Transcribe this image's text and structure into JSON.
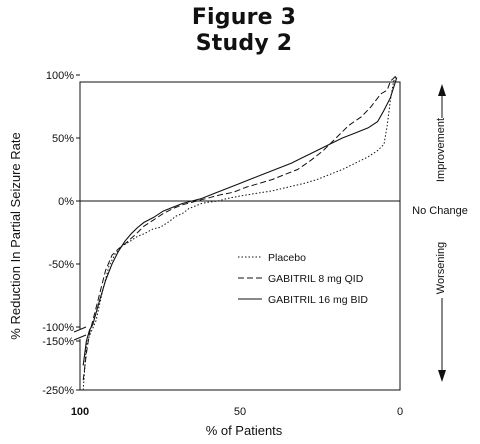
{
  "figure": {
    "title": "Figure 3",
    "subtitle": "Study 2"
  },
  "annotations": {
    "improvement": "Improvement",
    "worsening": "Worsening",
    "no_change": "No Change"
  },
  "chart_data": {
    "type": "line",
    "xlabel": "% of Patients",
    "ylabel": "% Reduction In Partial Seizure Rate",
    "xlim": [
      100,
      0
    ],
    "x_reversed": true,
    "x_ticks": [
      {
        "value": 100,
        "label": "100"
      },
      {
        "value": 50,
        "label": "50"
      },
      {
        "value": 0,
        "label": "0"
      }
    ],
    "y_ticks": [
      {
        "value": 100,
        "label": "100%"
      },
      {
        "value": 50,
        "label": "50%"
      },
      {
        "value": 0,
        "label": "0%"
      },
      {
        "value": -50,
        "label": "-50%"
      },
      {
        "value": -100,
        "label": "-100%"
      },
      {
        "value": -150,
        "label": "-150%"
      },
      {
        "value": -250,
        "label": "-250%"
      }
    ],
    "y_axis_break": {
      "between": [
        -100,
        -150
      ]
    },
    "reference_line": {
      "y": 0
    },
    "legend_position": "center-right",
    "series": [
      {
        "name": "Placebo",
        "style": "dotted",
        "points": [
          [
            99,
            -250
          ],
          [
            98,
            -160
          ],
          [
            97,
            -130
          ],
          [
            95,
            -95
          ],
          [
            93,
            -72
          ],
          [
            91,
            -52
          ],
          [
            89,
            -42
          ],
          [
            87,
            -36
          ],
          [
            85,
            -33
          ],
          [
            82,
            -28
          ],
          [
            80,
            -26
          ],
          [
            77,
            -22
          ],
          [
            75,
            -21
          ],
          [
            72,
            -16
          ],
          [
            70,
            -12
          ],
          [
            68,
            -10
          ],
          [
            66,
            -6
          ],
          [
            64,
            -4
          ],
          [
            62,
            -2
          ],
          [
            60,
            -1
          ],
          [
            57,
            0
          ],
          [
            54,
            2
          ],
          [
            50,
            4
          ],
          [
            45,
            6
          ],
          [
            40,
            8
          ],
          [
            35,
            11
          ],
          [
            30,
            14
          ],
          [
            26,
            17
          ],
          [
            22,
            21
          ],
          [
            18,
            25
          ],
          [
            14,
            30
          ],
          [
            10,
            35
          ],
          [
            7,
            40
          ],
          [
            5,
            45
          ],
          [
            4,
            60
          ],
          [
            3,
            80
          ],
          [
            2,
            95
          ],
          [
            1,
            100
          ]
        ]
      },
      {
        "name": "GABITRIL 8 mg QID",
        "style": "dashed",
        "points": [
          [
            99,
            -230
          ],
          [
            98,
            -175
          ],
          [
            97,
            -120
          ],
          [
            96,
            -95
          ],
          [
            94,
            -75
          ],
          [
            92,
            -55
          ],
          [
            90,
            -43
          ],
          [
            88,
            -38
          ],
          [
            85,
            -32
          ],
          [
            82,
            -25
          ],
          [
            80,
            -20
          ],
          [
            77,
            -15
          ],
          [
            74,
            -10
          ],
          [
            71,
            -6
          ],
          [
            68,
            -3
          ],
          [
            65,
            -1
          ],
          [
            62,
            1
          ],
          [
            59,
            3
          ],
          [
            56,
            5
          ],
          [
            52,
            7
          ],
          [
            48,
            11
          ],
          [
            44,
            14
          ],
          [
            40,
            17
          ],
          [
            36,
            21
          ],
          [
            32,
            25
          ],
          [
            28,
            32
          ],
          [
            24,
            40
          ],
          [
            20,
            50
          ],
          [
            16,
            60
          ],
          [
            12,
            67
          ],
          [
            9,
            75
          ],
          [
            6,
            85
          ],
          [
            4,
            88
          ],
          [
            3,
            95
          ],
          [
            1,
            100
          ]
        ]
      },
      {
        "name": "GABITRIL 16 mg BID",
        "style": "solid",
        "points": [
          [
            99,
            -200
          ],
          [
            98,
            -150
          ],
          [
            97,
            -110
          ],
          [
            96,
            -98
          ],
          [
            94,
            -80
          ],
          [
            92,
            -63
          ],
          [
            90,
            -50
          ],
          [
            88,
            -40
          ],
          [
            86,
            -32
          ],
          [
            84,
            -26
          ],
          [
            82,
            -21
          ],
          [
            80,
            -17
          ],
          [
            77,
            -13
          ],
          [
            74,
            -8
          ],
          [
            71,
            -5
          ],
          [
            68,
            -2
          ],
          [
            65,
            0
          ],
          [
            62,
            2
          ],
          [
            58,
            6
          ],
          [
            54,
            10
          ],
          [
            50,
            14
          ],
          [
            46,
            18
          ],
          [
            42,
            22
          ],
          [
            38,
            26
          ],
          [
            34,
            30
          ],
          [
            30,
            35
          ],
          [
            26,
            40
          ],
          [
            22,
            45
          ],
          [
            18,
            50
          ],
          [
            14,
            54
          ],
          [
            10,
            58
          ],
          [
            7,
            63
          ],
          [
            5,
            72
          ],
          [
            3,
            82
          ],
          [
            2,
            90
          ],
          [
            1,
            98
          ]
        ]
      }
    ]
  }
}
